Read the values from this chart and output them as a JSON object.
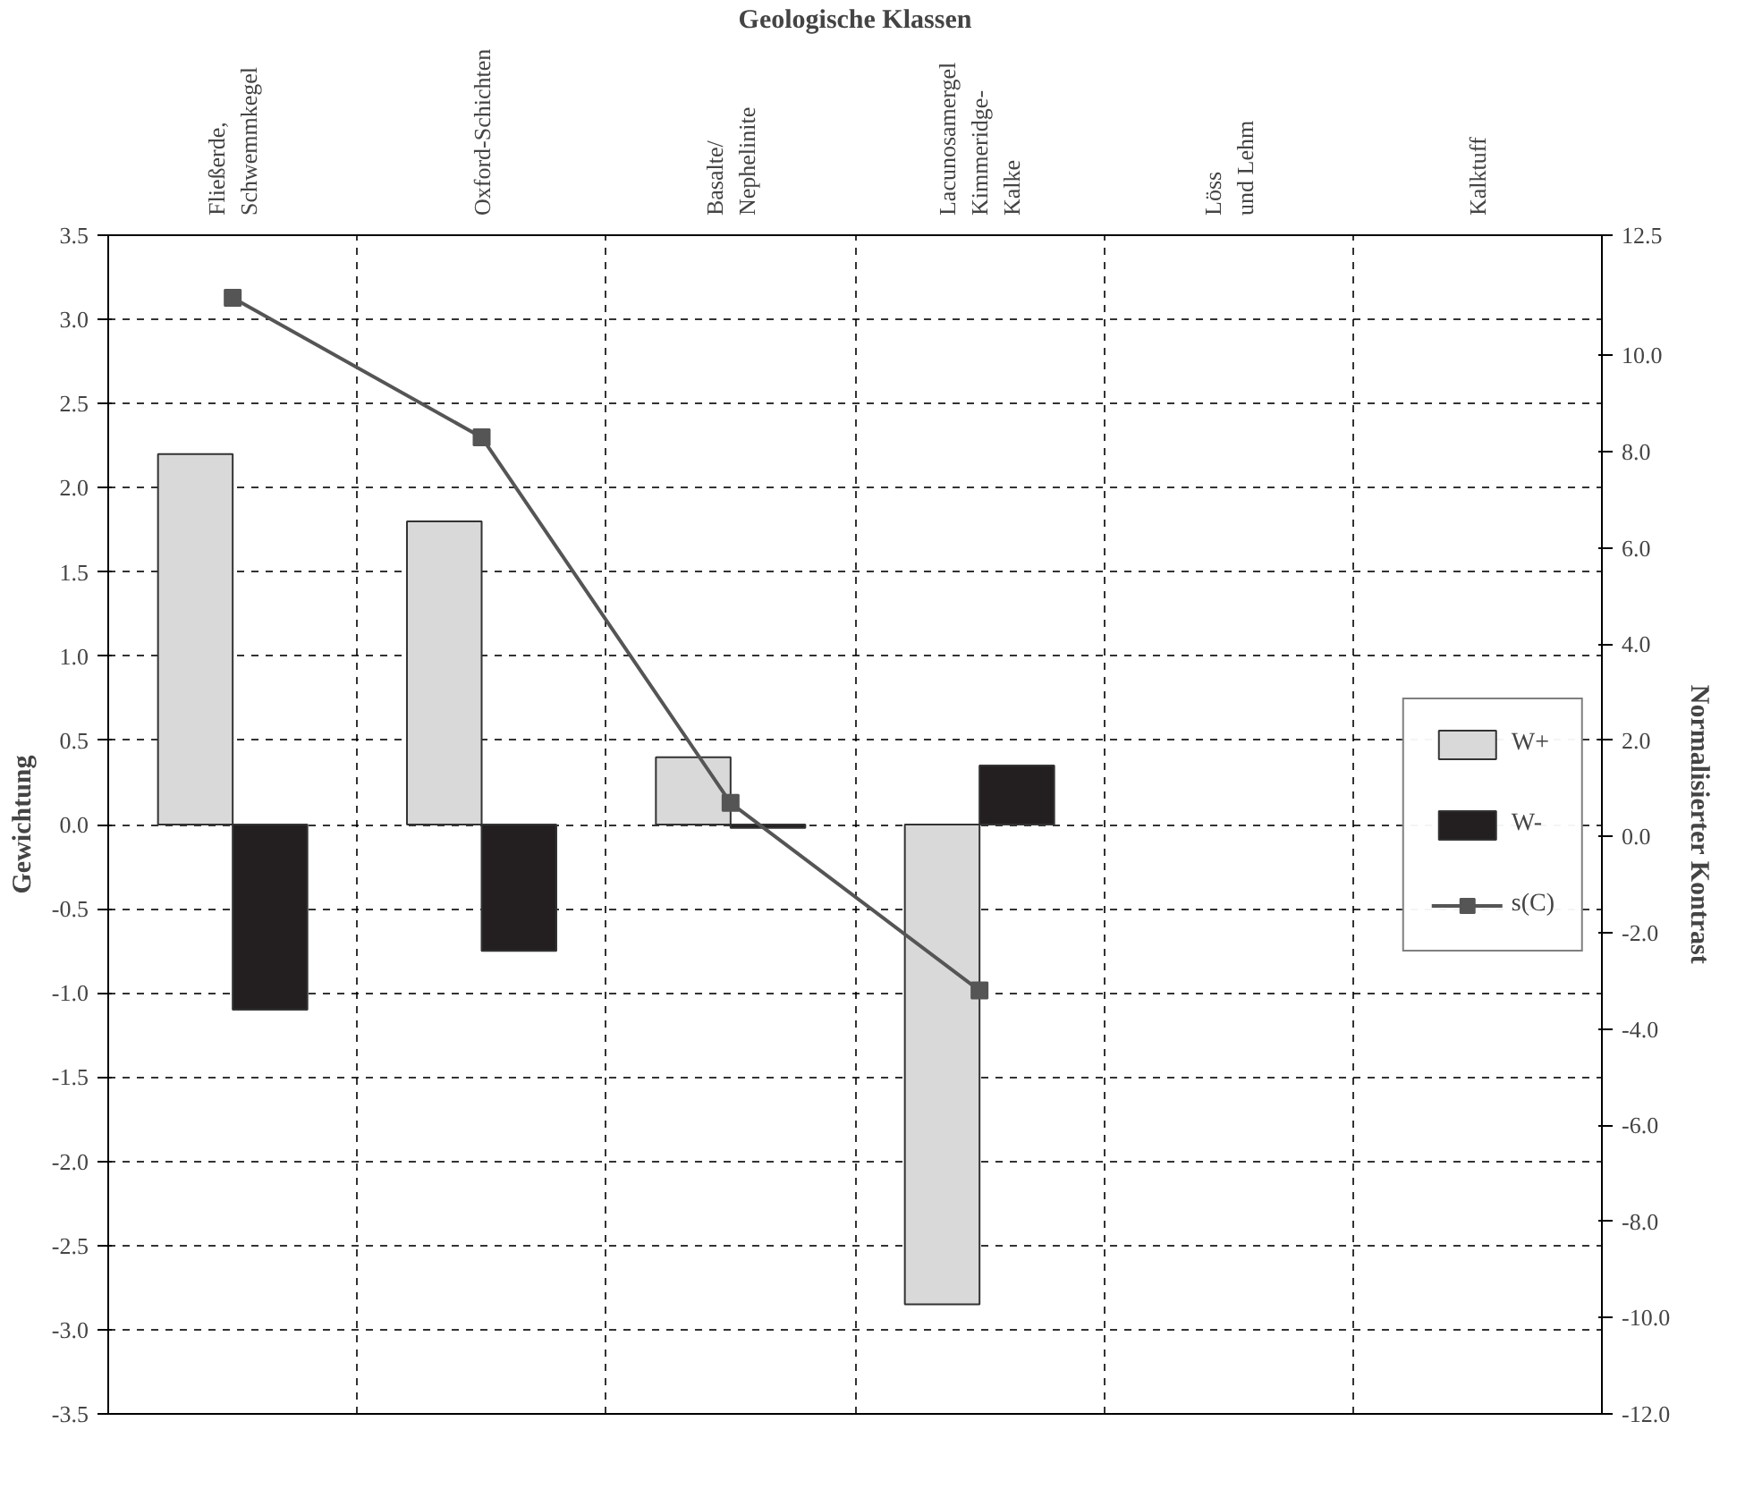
{
  "chart_data": {
    "type": "bar",
    "xlabel": "Geologische Klassen",
    "ylabel": "Gewichtung",
    "y2label": "Normalisierter Kontrast",
    "categories": [
      "Fließerde,\nSchwemmkegel",
      "Oxford-Schichten",
      "Basalte/\nNephelinite",
      "Lacunosamergel\nKimmeridge-\nKalke",
      "Löss\nund Lehm",
      "Kalktuff"
    ],
    "series": [
      {
        "name": "W+",
        "color": "#d9d9d9",
        "values": [
          2.2,
          1.8,
          0.4,
          -2.85,
          null,
          null
        ]
      },
      {
        "name": "W-",
        "color": "#231f20",
        "values": [
          -1.1,
          -0.75,
          -0.02,
          0.35,
          null,
          null
        ]
      },
      {
        "name": "s(C)",
        "type": "line",
        "axis": "y2",
        "color": "#555555",
        "marker": "square",
        "values": [
          11.2,
          8.3,
          0.7,
          -3.2,
          null,
          null
        ]
      }
    ],
    "ylim": [
      -3.5,
      3.5
    ],
    "yticks": [
      3.5,
      2.5,
      1.5,
      0.5,
      -0.5,
      -1.5,
      -2.5,
      -3.5,
      {
        "value": 3,
        "label": "3.0"
      },
      {
        "value": 2,
        "label": "2.0"
      },
      {
        "value": 1,
        "label": "1.0"
      },
      {
        "value": 0,
        "label": "0.0"
      },
      {
        "value": -1,
        "label": "-1.0"
      },
      {
        "value": -2,
        "label": "-2.0"
      },
      {
        "value": -3,
        "label": "-3.0"
      }
    ],
    "y2lim": [
      -12,
      12.5
    ],
    "y2ticks": [
      12.5,
      {
        "value": 10,
        "label": "10.0"
      },
      {
        "value": 8,
        "label": "8.0"
      },
      {
        "value": 6,
        "label": "6.0"
      },
      {
        "value": 4,
        "label": "4.0"
      },
      {
        "value": 2,
        "label": "2.0"
      },
      {
        "value": 0,
        "label": "0.0"
      },
      {
        "value": -2,
        "label": "-2.0"
      },
      {
        "value": -4,
        "label": "-4.0"
      },
      {
        "value": -6,
        "label": "-6.0"
      },
      {
        "value": -8,
        "label": "-8.0"
      },
      {
        "value": -10,
        "label": "-10.0"
      },
      {
        "value": -12,
        "label": "-12.0"
      }
    ],
    "grid": true,
    "legend": "right"
  }
}
